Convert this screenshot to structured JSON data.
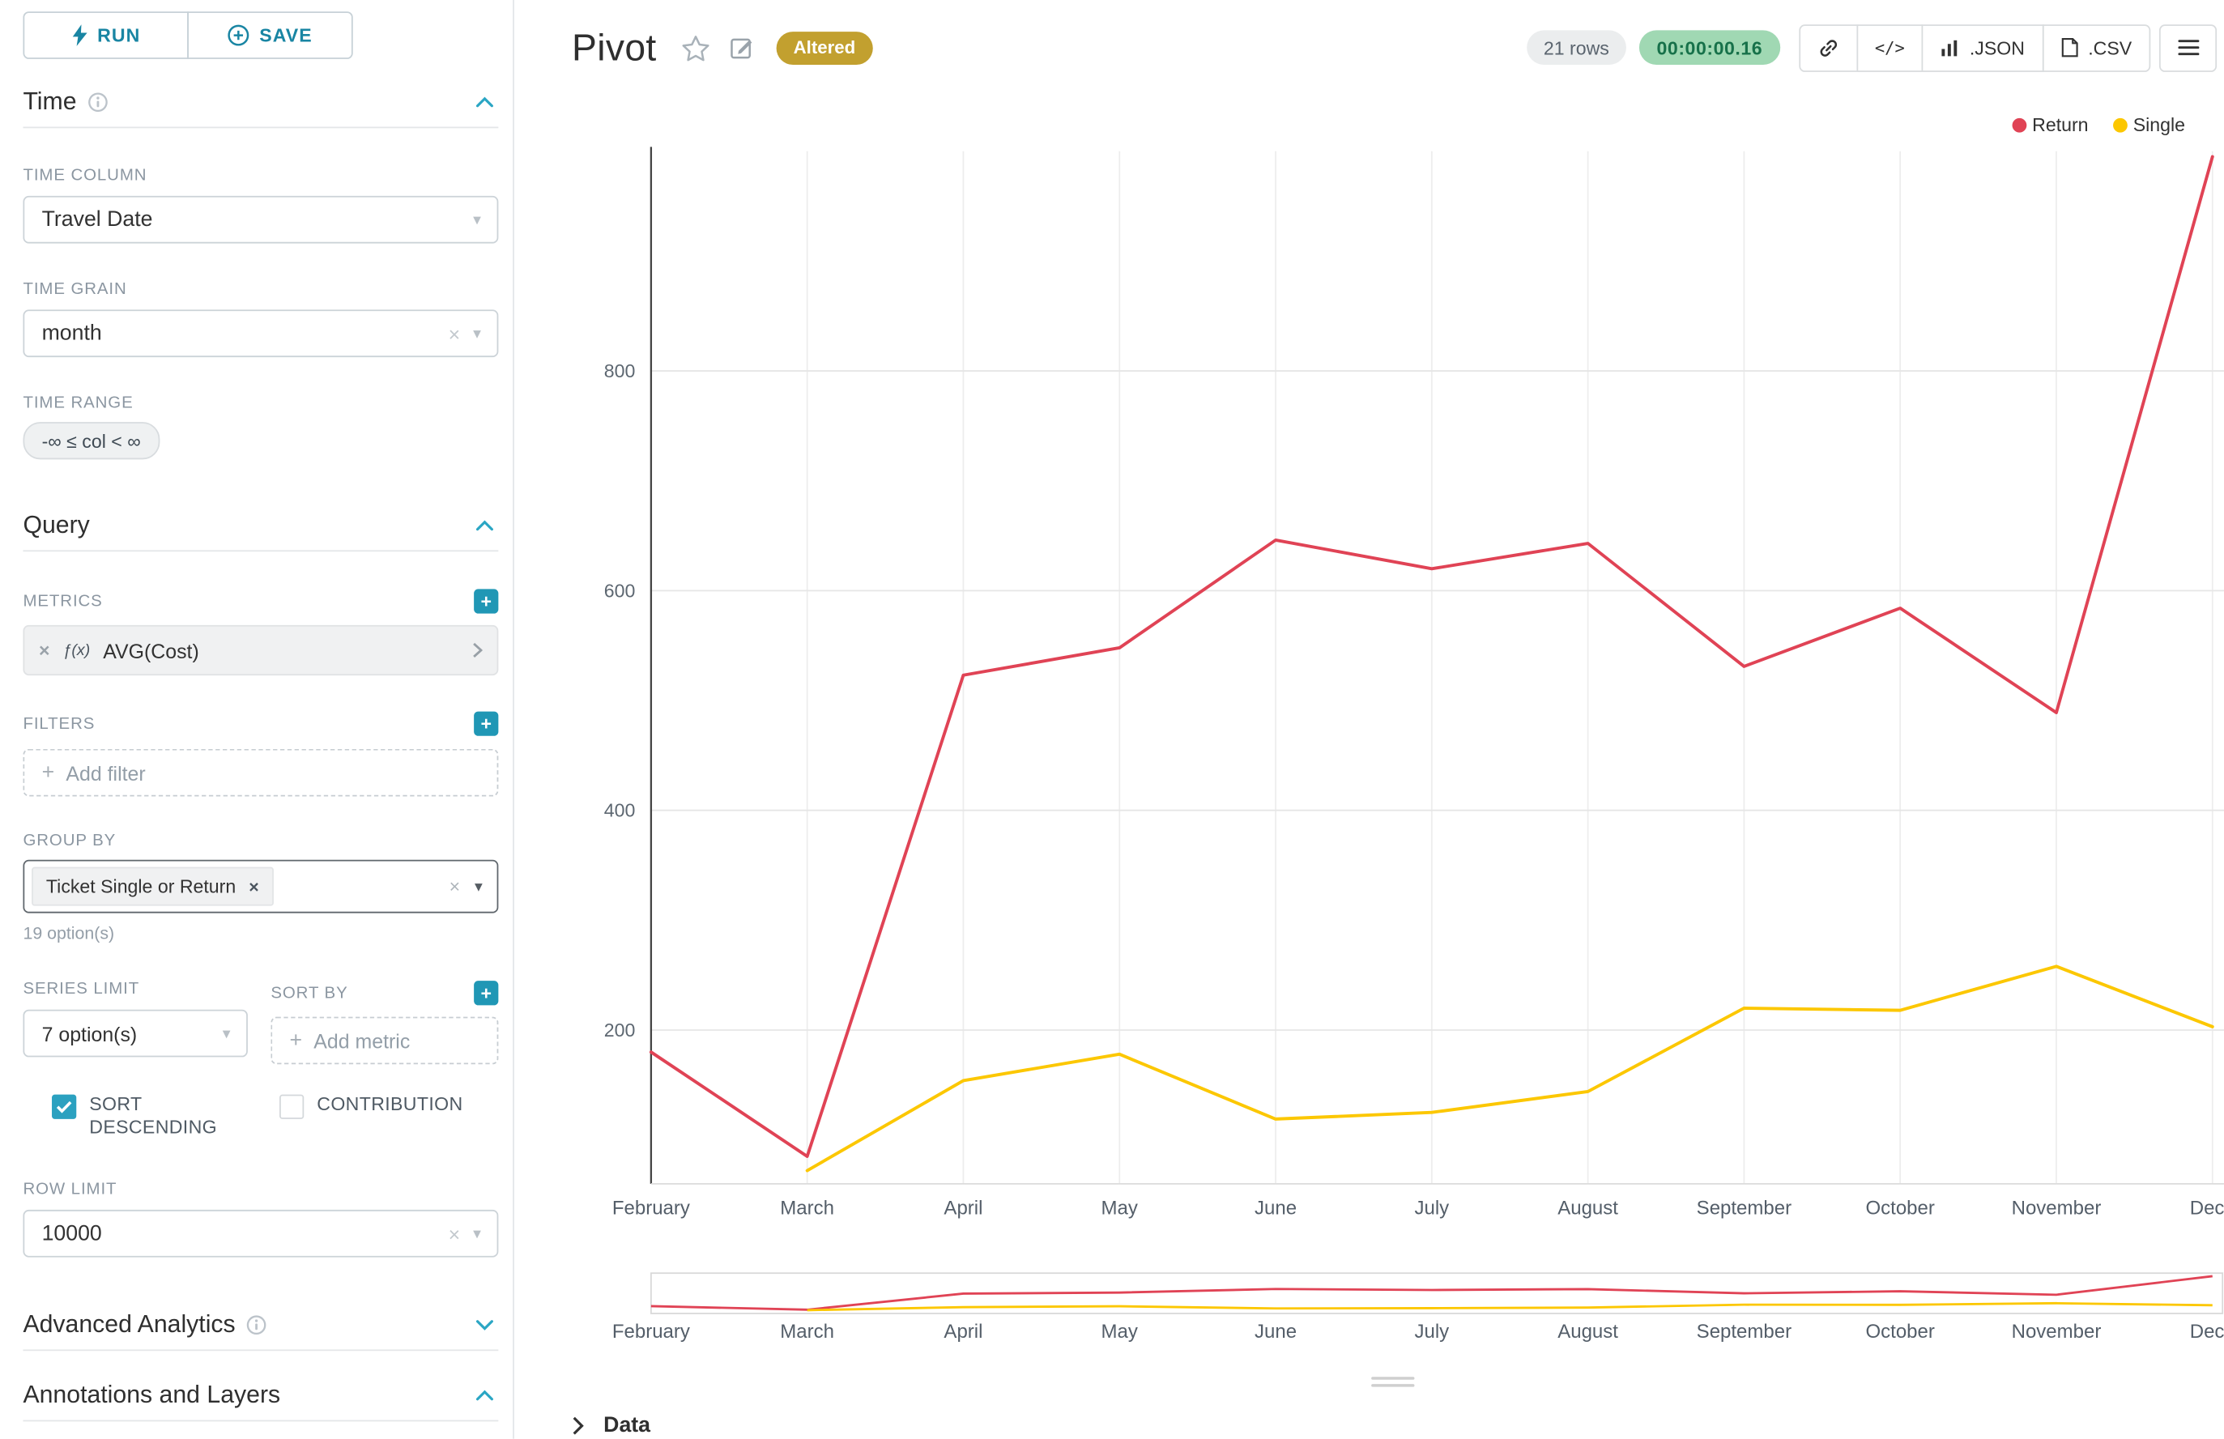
{
  "colors": {
    "accent": "#20A7C9",
    "return_series": "#E04355",
    "single_series": "#FCC700",
    "altered_badge_bg": "#C2A02F",
    "timer_badge_bg": "#A0D8B3",
    "timer_badge_text": "#17714A"
  },
  "toolbar": {
    "run_label": "RUN",
    "save_label": "SAVE"
  },
  "panel": {
    "time": {
      "title": "Time",
      "time_column_label": "TIME COLUMN",
      "time_column_value": "Travel Date",
      "time_grain_label": "TIME GRAIN",
      "time_grain_value": "month",
      "time_range_label": "TIME RANGE",
      "time_range_value": "-∞ ≤ col < ∞"
    },
    "query": {
      "title": "Query",
      "metrics_label": "METRICS",
      "metric_fx": "ƒ(x)",
      "metric_value": "AVG(Cost)",
      "filters_label": "FILTERS",
      "add_filter_label": "Add filter",
      "group_by_label": "GROUP BY",
      "group_by_value": "Ticket Single or Return",
      "group_by_hint": "19 option(s)",
      "series_limit_label": "SERIES LIMIT",
      "series_limit_value": "7 option(s)",
      "sort_by_label": "SORT BY",
      "add_metric_label": "Add metric",
      "sort_descending_label": "SORT DESCENDING",
      "contribution_label": "CONTRIBUTION",
      "row_limit_label": "ROW LIMIT",
      "row_limit_value": "10000"
    },
    "advanced": {
      "title": "Advanced Analytics"
    },
    "annotations": {
      "title": "Annotations and Layers"
    }
  },
  "header": {
    "title": "Pivot",
    "altered_badge": "Altered",
    "rows_badge": "21 rows",
    "timer": "00:00:00.16",
    "code_icon_label": "</>",
    "json_label": ".JSON",
    "csv_label": ".CSV"
  },
  "data_panel": {
    "title": "Data"
  },
  "chart_data": {
    "type": "line",
    "title": "",
    "categories": [
      "February",
      "March",
      "April",
      "May",
      "June",
      "July",
      "August",
      "September",
      "October",
      "November",
      "Dece"
    ],
    "series": [
      {
        "name": "Return",
        "color": "#E04355",
        "values": [
          180,
          85,
          523,
          548,
          646,
          620,
          643,
          531,
          584,
          489,
          995
        ]
      },
      {
        "name": "Single",
        "color": "#FCC700",
        "values": [
          null,
          72,
          154,
          178,
          119,
          125,
          144,
          220,
          218,
          258,
          203
        ]
      }
    ],
    "xlabel": "",
    "ylabel": "",
    "yticks": [
      200,
      400,
      600,
      800
    ],
    "ylim": [
      60,
      1000
    ],
    "grid": true,
    "legend": [
      "Return",
      "Single"
    ],
    "legend_position": "top-right",
    "has_range_brush": true
  }
}
